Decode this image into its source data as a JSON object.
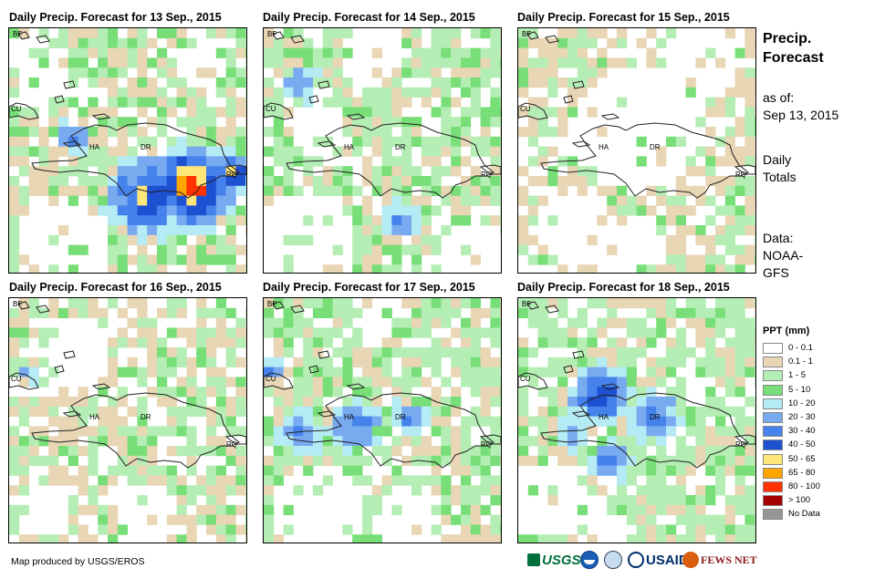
{
  "panels": [
    {
      "title": "Daily Precip. Forecast for 13 Sep., 2015",
      "variant": 0
    },
    {
      "title": "Daily Precip. Forecast for 14 Sep., 2015",
      "variant": 1
    },
    {
      "title": "Daily Precip. Forecast for 15 Sep., 2015",
      "variant": 2
    },
    {
      "title": "Daily Precip. Forecast for 16 Sep., 2015",
      "variant": 3
    },
    {
      "title": "Daily Precip. Forecast for 17 Sep., 2015",
      "variant": 4
    },
    {
      "title": "Daily Precip. Forecast for 18 Sep., 2015",
      "variant": 5
    }
  ],
  "map_labels": {
    "bf": "BF",
    "cu": "CU",
    "ha": "HA",
    "dr": "DR",
    "rq": "RQ"
  },
  "side": {
    "title_line1": "Precip.",
    "title_line2": "Forecast",
    "asof_label": "as of:",
    "asof_date": "Sep 13, 2015",
    "totals_line1": "Daily",
    "totals_line2": "Totals",
    "data_line1": "Data:",
    "data_line2": "NOAA-",
    "data_line3": "GFS"
  },
  "legend": {
    "title": "PPT (mm)",
    "items": [
      {
        "label": "0 - 0.1",
        "color": "#ffffff"
      },
      {
        "label": "0.1 - 1",
        "color": "#e8d6b4"
      },
      {
        "label": "1 - 5",
        "color": "#b4eeb4"
      },
      {
        "label": "5 - 10",
        "color": "#78de78"
      },
      {
        "label": "10 - 20",
        "color": "#b4ebf5"
      },
      {
        "label": "20 - 30",
        "color": "#78aaf0"
      },
      {
        "label": "30 - 40",
        "color": "#4682eb"
      },
      {
        "label": "40 - 50",
        "color": "#1e50d2"
      },
      {
        "label": "50 - 65",
        "color": "#ffe678"
      },
      {
        "label": "65 - 80",
        "color": "#ffa500"
      },
      {
        "label": "80 - 100",
        "color": "#ff3200"
      },
      {
        "label": "> 100",
        "color": "#a50000"
      },
      {
        "label": "No Data",
        "color": "#969696"
      }
    ]
  },
  "footer": {
    "credit": "Map produced by USGS/EROS",
    "usgs_logo": "USGS",
    "usaid_logo": "USAID",
    "fewsnet_logo": "FEWS NET"
  },
  "colors": {
    "coast": "#222222"
  }
}
